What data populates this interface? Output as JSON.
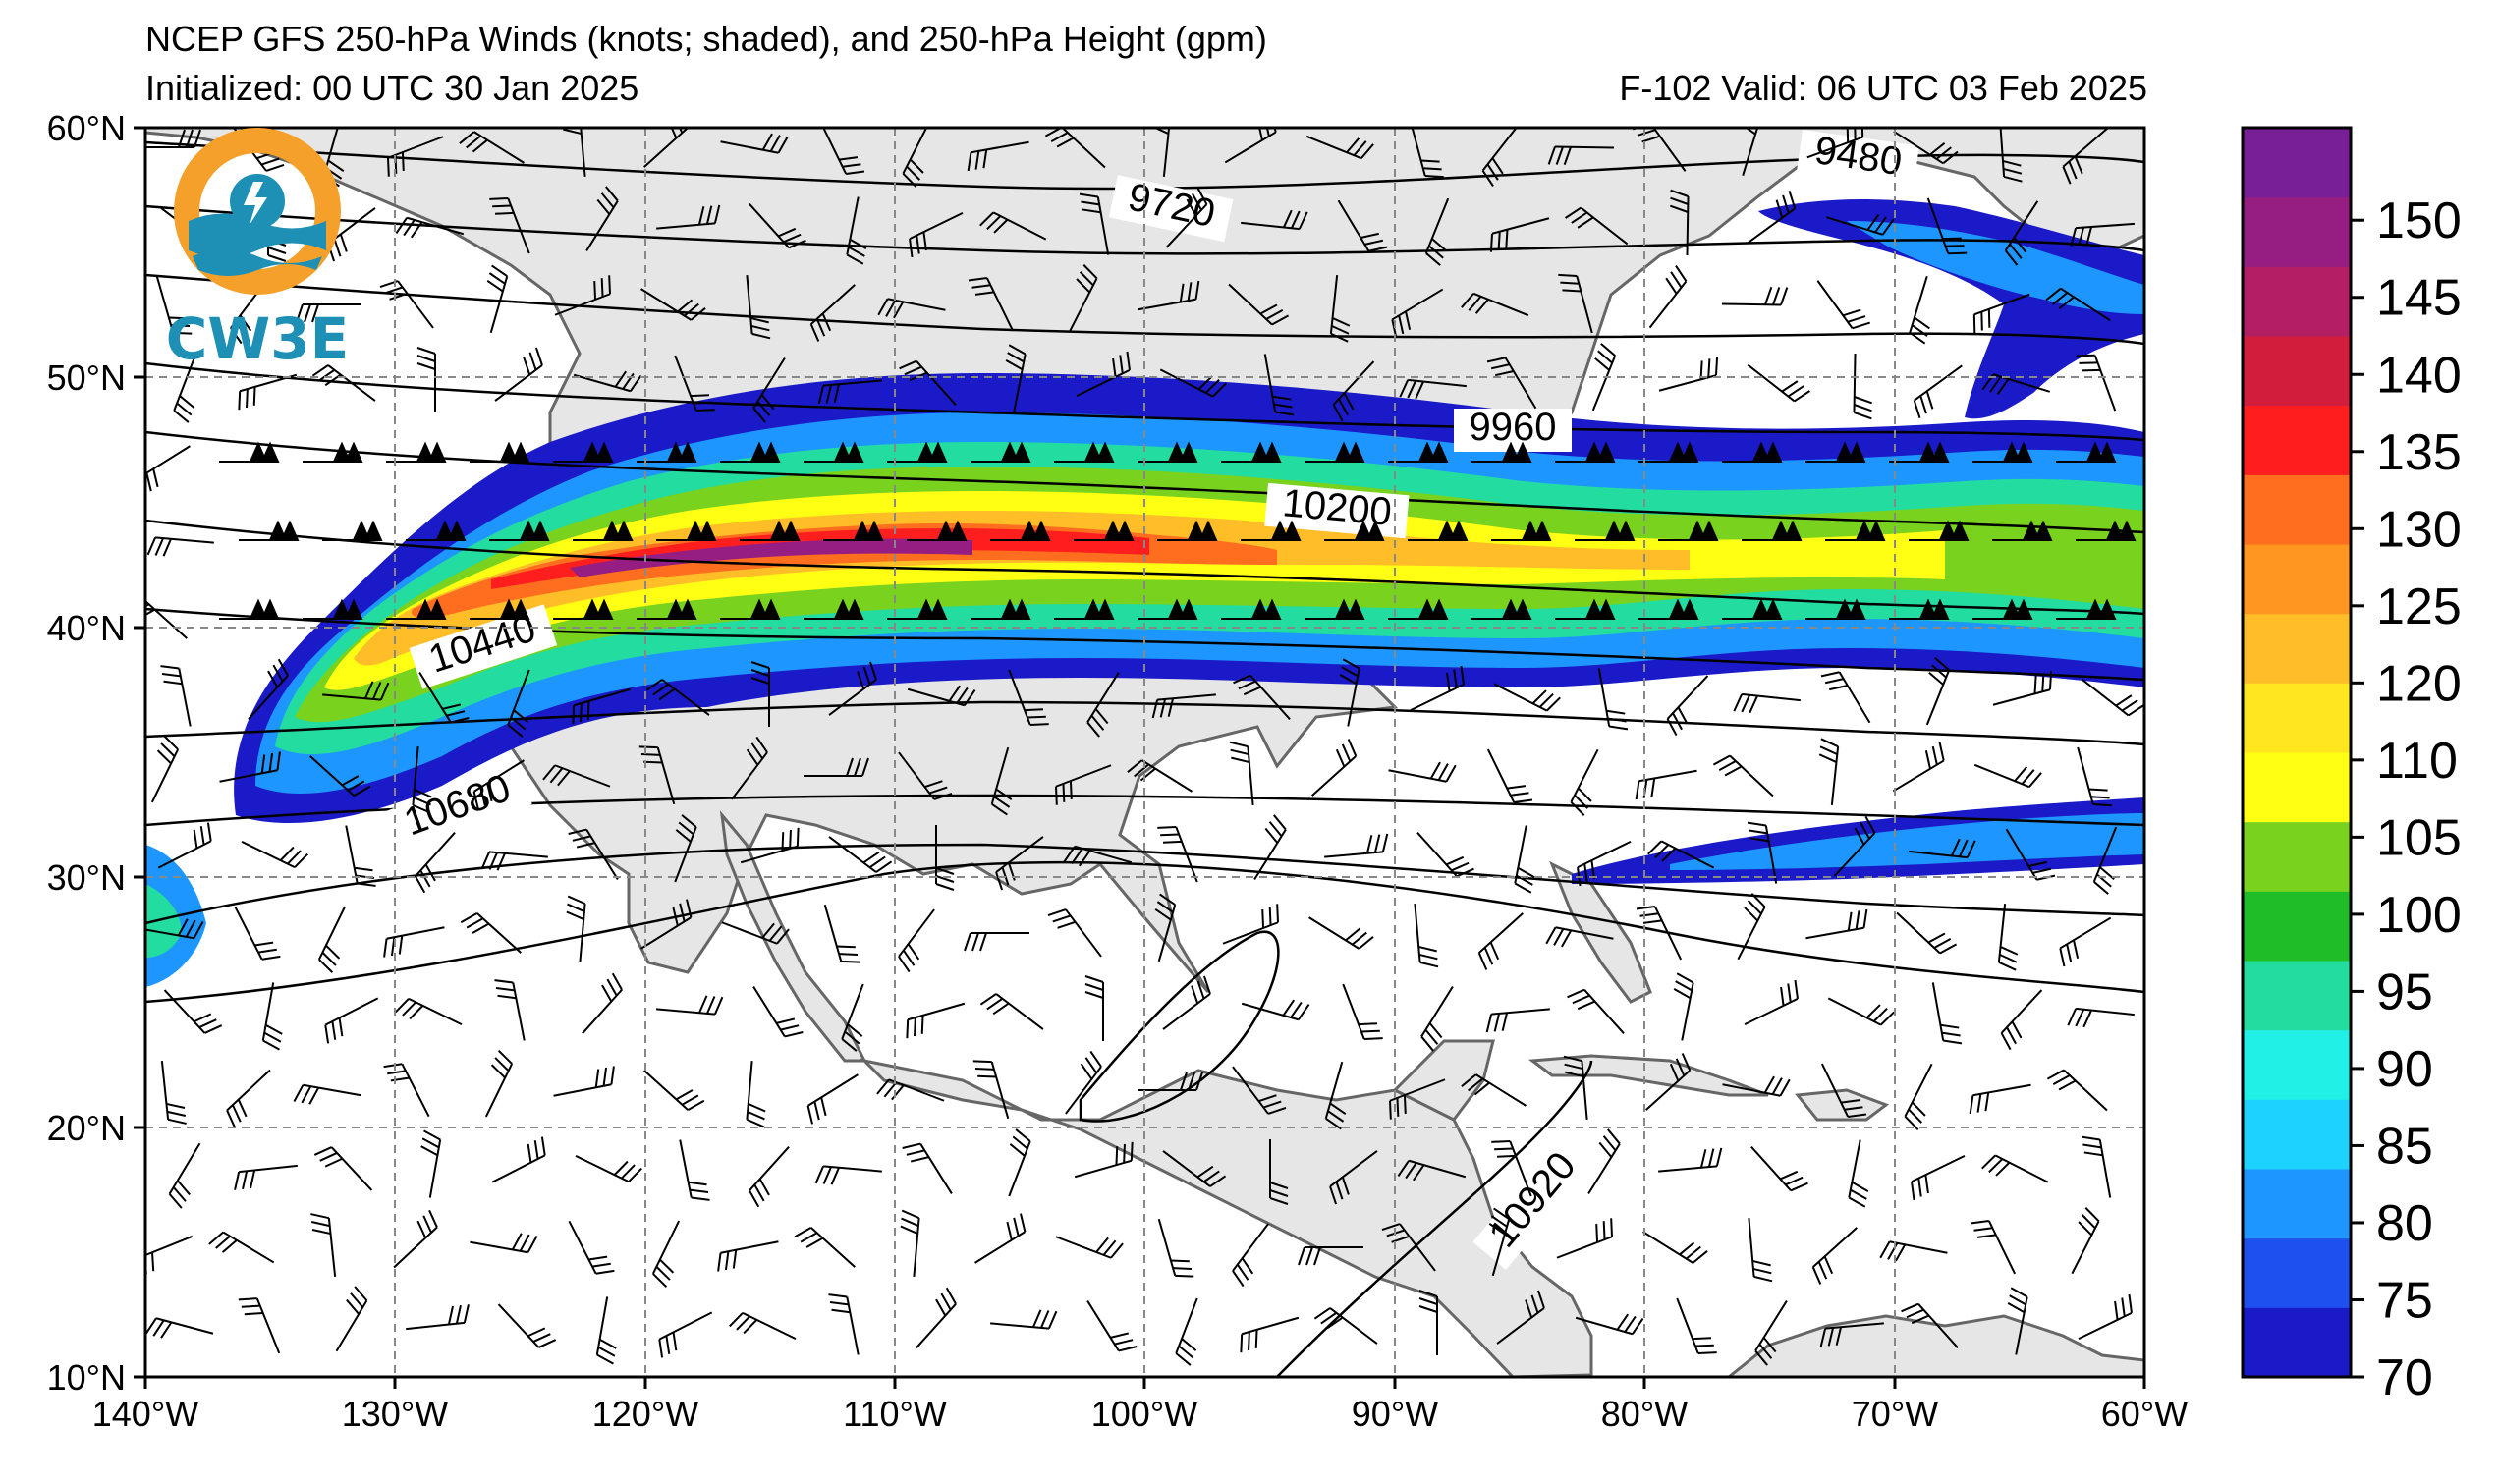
{
  "header": {
    "title": "NCEP GFS 250-hPa Winds (knots; shaded), and 250-hPa Height (gpm)",
    "initialized": "Initialized: 00 UTC 30 Jan 2025",
    "valid": "F-102  Valid: 06 UTC 03 Feb 2025"
  },
  "logo": {
    "text": "CW3E",
    "ring_color": "#f5a02a",
    "wave_color": "#1e8fb5"
  },
  "map": {
    "projection": "equirectangular",
    "lon_range": [
      -140,
      -60
    ],
    "lat_range": [
      10,
      60
    ],
    "land_color": "#e6e6e6",
    "ocean_color": "#ffffff",
    "grid": true,
    "lon_labels": [
      "140°W",
      "130°W",
      "120°W",
      "110°W",
      "100°W",
      "90°W",
      "80°W",
      "70°W",
      "60°W"
    ],
    "lat_labels": [
      "60°N",
      "50°N",
      "40°N",
      "30°N",
      "20°N",
      "10°N"
    ],
    "height_contour_labels": [
      "9480",
      "9720",
      "9960",
      "10200",
      "10440",
      "10680",
      "10920"
    ]
  },
  "colorbar": {
    "units": "knots",
    "levels": [
      70,
      75,
      80,
      85,
      90,
      95,
      100,
      105,
      110,
      120,
      125,
      130,
      135,
      140,
      145,
      150
    ],
    "colors": [
      "#1a1ac8",
      "#1e50f0",
      "#1e96ff",
      "#1ed2ff",
      "#20f0e6",
      "#22dca0",
      "#1fbe28",
      "#78d21e",
      "#ffff14",
      "#ffe61e",
      "#ffbe28",
      "#ff9620",
      "#ff6e1e",
      "#ff1e1e",
      "#d21e3c",
      "#b41e64",
      "#961e82",
      "#781e96"
    ],
    "tick_labels": [
      "70",
      "75",
      "80",
      "85",
      "90",
      "95",
      "100",
      "105",
      "110",
      "120",
      "125",
      "130",
      "135",
      "140",
      "145",
      "150"
    ]
  },
  "chart_data": {
    "type": "heatmap",
    "title": "NCEP GFS 250-hPa Winds (knots; shaded), and 250-hPa Height (gpm)",
    "xlabel": "",
    "ylabel": "",
    "x_range": [
      -140,
      -60
    ],
    "y_range": [
      10,
      60
    ],
    "value_range": [
      70,
      155
    ],
    "jet_streaks": [
      {
        "lon_start": -137,
        "lon_end": -110,
        "lat_center": 42.5,
        "peak_knots": 150
      },
      {
        "lon_start": -110,
        "lon_end": -60,
        "lat_center": 44,
        "peak_knots": 130
      },
      {
        "lon_start": -80,
        "lon_end": -60,
        "lat_center": 31.5,
        "peak_knots": 80
      },
      {
        "lon_start": -75,
        "lon_end": -60,
        "lat_center": 53,
        "peak_knots": 90
      }
    ],
    "height_contours_gpm": [
      9480,
      9720,
      9960,
      10200,
      10440,
      10680,
      10920
    ]
  }
}
